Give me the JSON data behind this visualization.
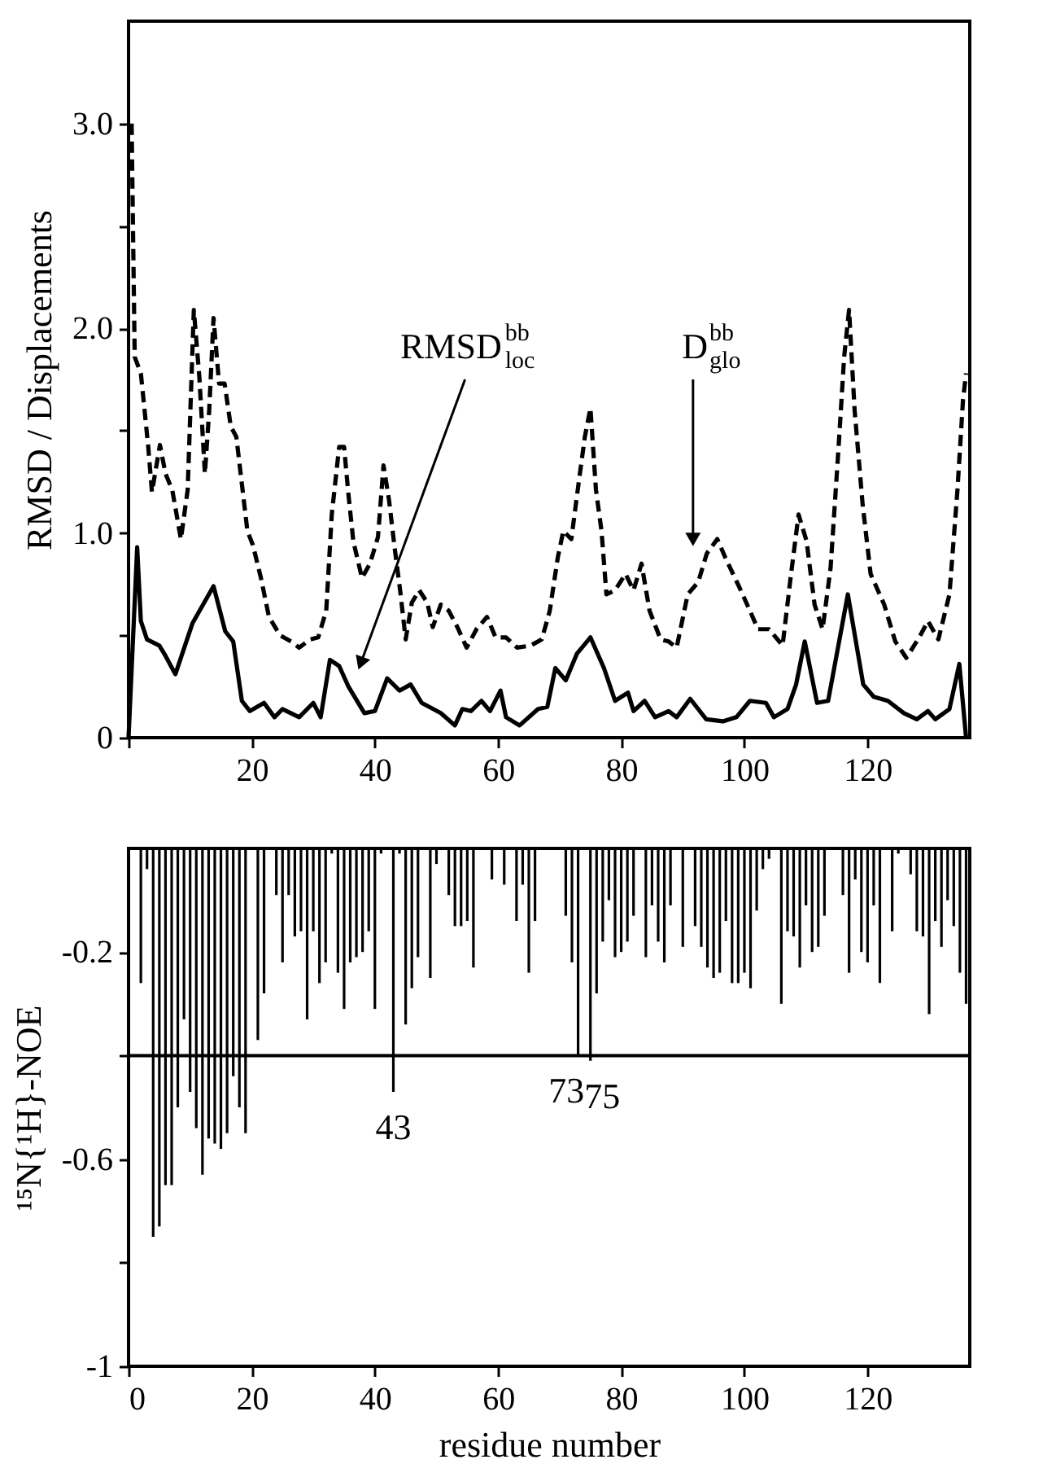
{
  "chart_data": [
    {
      "type": "line",
      "ylabel": "RMSD / Displacements",
      "xlim": [
        0,
        136.6
      ],
      "ylim": [
        0,
        3.5
      ],
      "xticks": [
        {
          "value": 0,
          "label": null
        },
        20,
        40,
        60,
        80,
        100,
        120
      ],
      "yticks": [
        0,
        {
          "value": 0.5,
          "label": null
        },
        {
          "value": 1,
          "label": "1.0"
        },
        {
          "value": 1.5,
          "label": null
        },
        {
          "value": 2,
          "label": "2.0"
        },
        {
          "value": 2.5,
          "label": null
        },
        {
          "value": 3,
          "label": "3.0"
        }
      ],
      "series": [
        {
          "color": "#000000",
          "line_style": "solid",
          "x": [
            0,
            1.4,
            2,
            3,
            5,
            6,
            7.6,
            10.4,
            13.8,
            15.7,
            17,
            18.4,
            19.7,
            22,
            23.7,
            25,
            27.7,
            30,
            31.2,
            32.7,
            34.2,
            35.7,
            38.3,
            40,
            42,
            44,
            45.8,
            47.6,
            50.7,
            53,
            54.2,
            55.6,
            57.3,
            58.7,
            60.4,
            61.3,
            63.5,
            66.5,
            68,
            69.3,
            71,
            72.8,
            75,
            77.2,
            79,
            81.1,
            82,
            83.8,
            85.5,
            87.7,
            89,
            91.2,
            93.8,
            96.5,
            98.7,
            100.9,
            103.5,
            104.8,
            107,
            108.4,
            109.8,
            111.8,
            113.6,
            116.8,
            119.3,
            121,
            123.3,
            125.9,
            128,
            129.8,
            131,
            133.3,
            134.9,
            136
          ],
          "values": [
            0,
            0.93,
            0.57,
            0.48,
            0.45,
            0.4,
            0.31,
            0.56,
            0.74,
            0.52,
            0.47,
            0.18,
            0.13,
            0.17,
            0.1,
            0.14,
            0.1,
            0.17,
            0.1,
            0.38,
            0.35,
            0.25,
            0.12,
            0.13,
            0.29,
            0.23,
            0.26,
            0.17,
            0.12,
            0.06,
            0.14,
            0.13,
            0.18,
            0.13,
            0.23,
            0.1,
            0.06,
            0.14,
            0.15,
            0.34,
            0.28,
            0.41,
            0.49,
            0.34,
            0.18,
            0.22,
            0.13,
            0.18,
            0.1,
            0.13,
            0.1,
            0.19,
            0.09,
            0.08,
            0.1,
            0.18,
            0.17,
            0.1,
            0.14,
            0.26,
            0.47,
            0.17,
            0.18,
            0.7,
            0.26,
            0.2,
            0.18,
            0.12,
            0.09,
            0.13,
            0.09,
            0.14,
            0.36,
            0
          ]
        },
        {
          "color": "#000000",
          "line_style": "dashed",
          "x": [
            0.5,
            1,
            2,
            3.2,
            3.8,
            5.1,
            6,
            7.1,
            8.5,
            9.6,
            10.6,
            11.5,
            12.4,
            13.1,
            13.8,
            14.7,
            15.6,
            16.6,
            17.5,
            18.4,
            19.3,
            20.2,
            21.5,
            22.8,
            24.6,
            26.4,
            27.7,
            29.5,
            30.8,
            32.1,
            33,
            34.2,
            35,
            35.7,
            36.5,
            37.9,
            39.2,
            40.5,
            41.4,
            42.3,
            43.2,
            44.1,
            45,
            46,
            47.2,
            48.5,
            49.4,
            50.7,
            52,
            53.4,
            54.9,
            56.5,
            58.2,
            59.6,
            61.3,
            63.1,
            65.3,
            67.1,
            68.4,
            69.7,
            70.6,
            71.9,
            73.2,
            74.1,
            75,
            75.9,
            76.8,
            77.6,
            79,
            80.7,
            82,
            83.3,
            84.6,
            86.4,
            87.7,
            89,
            90.8,
            92.5,
            93.9,
            95.6,
            96.9,
            99.1,
            100.9,
            102.2,
            104,
            106.2,
            107.5,
            108.8,
            110.1,
            111.4,
            112.7,
            114,
            115.3,
            116.2,
            117,
            117.9,
            119.2,
            120.5,
            122.7,
            124.5,
            126.3,
            128.4,
            129.8,
            131.5,
            133.3,
            134.6,
            135.5,
            136
          ],
          "values": [
            3.0,
            1.86,
            1.78,
            1.42,
            1.2,
            1.43,
            1.29,
            1.21,
            0.97,
            1.21,
            2.09,
            1.76,
            1.29,
            1.6,
            2.05,
            1.73,
            1.73,
            1.52,
            1.47,
            1.24,
            1.01,
            0.94,
            0.78,
            0.59,
            0.5,
            0.47,
            0.44,
            0.48,
            0.49,
            0.62,
            1.09,
            1.42,
            1.42,
            1.19,
            0.96,
            0.78,
            0.85,
            0.98,
            1.33,
            1.16,
            0.93,
            0.72,
            0.48,
            0.66,
            0.72,
            0.66,
            0.54,
            0.65,
            0.62,
            0.54,
            0.44,
            0.53,
            0.59,
            0.49,
            0.49,
            0.44,
            0.45,
            0.48,
            0.62,
            0.88,
            1.01,
            0.97,
            1.27,
            1.47,
            1.61,
            1.21,
            1.01,
            0.7,
            0.72,
            0.8,
            0.72,
            0.85,
            0.62,
            0.48,
            0.47,
            0.44,
            0.7,
            0.76,
            0.9,
            0.97,
            0.88,
            0.74,
            0.62,
            0.53,
            0.53,
            0.45,
            0.78,
            1.09,
            0.96,
            0.65,
            0.53,
            0.83,
            1.42,
            1.86,
            2.09,
            1.6,
            1.14,
            0.8,
            0.65,
            0.47,
            0.39,
            0.49,
            0.57,
            0.48,
            0.7,
            1.21,
            1.65,
            1.78
          ]
        }
      ],
      "annotations": [
        "RMSD$^{bb}$$_{loc}$",
        "D$^{bb}$$_{glo}$"
      ]
    },
    {
      "type": "bar",
      "xlabel": "residue number",
      "ylabel": "¹⁵N{¹H}-NOE",
      "xlim": [
        0,
        136.6
      ],
      "ylim": [
        -1,
        0
      ],
      "xticks": [
        0,
        20,
        40,
        60,
        80,
        100,
        120
      ],
      "yticks": [
        -0.2,
        {
          "value": -0.4,
          "label": null
        },
        -0.6,
        {
          "value": -0.8,
          "label": null
        },
        -1
      ],
      "color": "#000000",
      "x": [
        2,
        3,
        4,
        5,
        6,
        7,
        8,
        9,
        10,
        11,
        12,
        13,
        14,
        15,
        16,
        17,
        18,
        19,
        20,
        21,
        22,
        23,
        24,
        25,
        26,
        27,
        28,
        29,
        30,
        31,
        32,
        33,
        34,
        35,
        36,
        37,
        38,
        39,
        40,
        41,
        42,
        43,
        44,
        45,
        46,
        47,
        48,
        49,
        50,
        51,
        52,
        53,
        54,
        55,
        56,
        57,
        58,
        59,
        60,
        61,
        62,
        63,
        64,
        65,
        66,
        67,
        68,
        69,
        70,
        71,
        72,
        73,
        74,
        75,
        76,
        77,
        78,
        79,
        80,
        81,
        82,
        83,
        84,
        85,
        86,
        87,
        88,
        89,
        90,
        91,
        92,
        93,
        94,
        95,
        96,
        97,
        98,
        99,
        100,
        101,
        102,
        103,
        104,
        105,
        106,
        107,
        108,
        109,
        110,
        111,
        112,
        113,
        114,
        115,
        116,
        117,
        118,
        119,
        120,
        121,
        122,
        123,
        124,
        125,
        126,
        127,
        128,
        129,
        130,
        131,
        132,
        133,
        134,
        135,
        136
      ],
      "values": [
        -0.26,
        -0.04,
        -0.75,
        -0.73,
        -0.65,
        -0.65,
        -0.5,
        -0.33,
        -0.47,
        -0.54,
        -0.63,
        -0.56,
        -0.57,
        -0.58,
        -0.55,
        -0.44,
        -0.5,
        -0.55,
        null,
        -0.37,
        -0.28,
        null,
        -0.09,
        -0.22,
        -0.09,
        -0.17,
        -0.16,
        -0.33,
        -0.16,
        -0.26,
        -0.22,
        -0.01,
        -0.24,
        -0.31,
        -0.22,
        -0.21,
        -0.2,
        -0.16,
        -0.31,
        -0.01,
        null,
        -0.47,
        -0.01,
        -0.34,
        -0.27,
        -0.21,
        null,
        -0.25,
        -0.03,
        null,
        -0.09,
        -0.15,
        -0.15,
        -0.14,
        -0.23,
        null,
        null,
        -0.06,
        null,
        -0.07,
        null,
        -0.14,
        -0.07,
        -0.24,
        -0.14,
        null,
        null,
        null,
        null,
        -0.13,
        -0.22,
        -0.4,
        null,
        -0.41,
        -0.28,
        -0.18,
        -0.1,
        -0.21,
        -0.2,
        -0.18,
        -0.13,
        null,
        -0.21,
        -0.11,
        -0.18,
        -0.22,
        -0.11,
        null,
        -0.19,
        null,
        -0.15,
        -0.19,
        -0.23,
        -0.25,
        -0.24,
        -0.14,
        -0.26,
        -0.26,
        -0.24,
        -0.27,
        -0.12,
        -0.04,
        -0.02,
        null,
        -0.3,
        -0.16,
        -0.17,
        -0.23,
        -0.11,
        -0.2,
        -0.19,
        -0.13,
        null,
        null,
        -0.09,
        -0.24,
        -0.06,
        -0.2,
        -0.22,
        -0.11,
        -0.26,
        null,
        -0.16,
        -0.01,
        null,
        -0.05,
        -0.16,
        -0.17,
        -0.32,
        -0.14,
        -0.19,
        -0.1,
        -0.15,
        -0.24,
        -0.3
      ],
      "ref_lines": [
        {
          "axis": "y",
          "value": -0.4,
          "color": "#000000",
          "line_style": "solid"
        }
      ],
      "annotations": [
        {
          "text": "43",
          "x": 43,
          "y": -0.47
        },
        {
          "text": "73",
          "x": 73,
          "y": -0.4
        },
        {
          "text": "75",
          "x": 75,
          "y": -0.41
        }
      ]
    }
  ]
}
